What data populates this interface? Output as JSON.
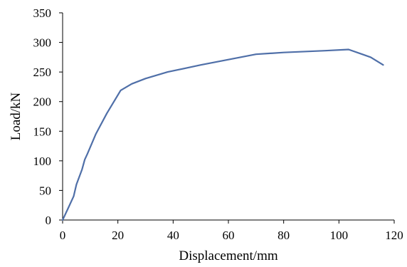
{
  "chart_data": {
    "type": "line",
    "title": "",
    "xlabel": "Displacement/mm",
    "ylabel": "Load/kN",
    "xlim": [
      0,
      120
    ],
    "ylim": [
      0,
      350
    ],
    "xticks": [
      0,
      20,
      40,
      60,
      80,
      100,
      120
    ],
    "yticks": [
      0,
      50,
      100,
      150,
      200,
      250,
      300,
      350
    ],
    "grid": false,
    "legend": "none",
    "series": [
      {
        "color": "#4f6fa8",
        "x": [
          0,
          2,
          4,
          5,
          7,
          8,
          9,
          12,
          16,
          21,
          25,
          30,
          38,
          50,
          60,
          70,
          80,
          95,
          103.5,
          111.5,
          116
        ],
        "y": [
          0,
          20,
          40,
          60,
          85,
          102,
          112,
          145,
          180,
          219,
          230,
          239,
          250,
          262,
          271,
          280,
          283,
          286,
          288,
          275,
          262
        ]
      }
    ]
  }
}
